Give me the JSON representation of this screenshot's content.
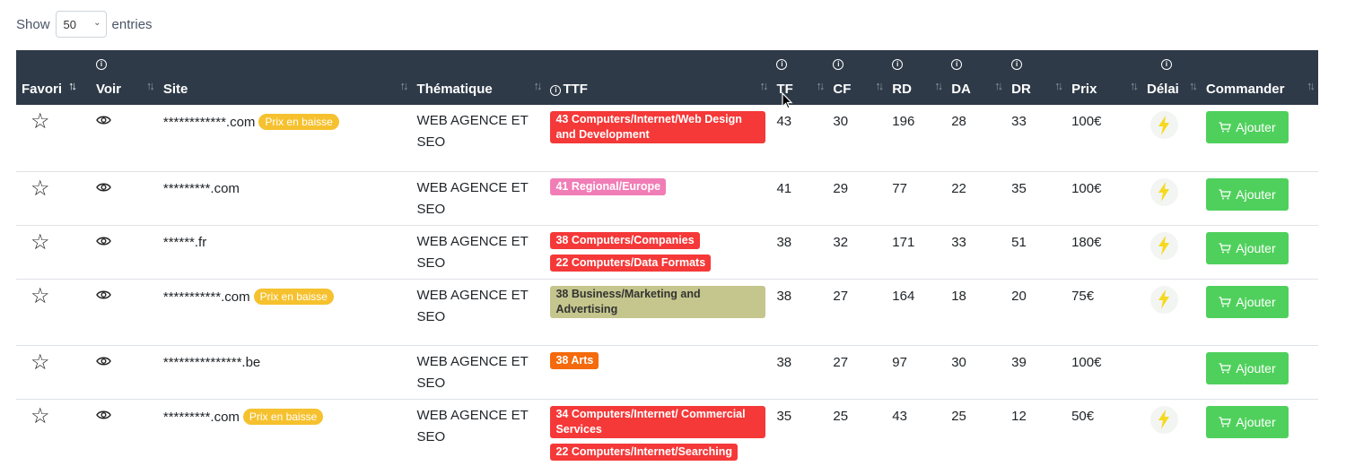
{
  "length_control": {
    "show_label": "Show",
    "selected": "50",
    "entries_label": "entries"
  },
  "columns": [
    {
      "key": "favori",
      "label": "Favori"
    },
    {
      "key": "voir",
      "label": "Voir"
    },
    {
      "key": "site",
      "label": "Site"
    },
    {
      "key": "thematique",
      "label": "Thématique"
    },
    {
      "key": "ttf",
      "label": "TTF"
    },
    {
      "key": "tf",
      "label": "TF"
    },
    {
      "key": "cf",
      "label": "CF"
    },
    {
      "key": "rd",
      "label": "RD"
    },
    {
      "key": "da",
      "label": "DA"
    },
    {
      "key": "dr",
      "label": "DR"
    },
    {
      "key": "prix",
      "label": "Prix"
    },
    {
      "key": "delai",
      "label": "Délai"
    },
    {
      "key": "commander",
      "label": "Commander"
    }
  ],
  "rows": [
    {
      "site": "************.com",
      "price_badge": "Prix en baisse",
      "theme_line1": "WEB AGENCE ET",
      "theme_line2": "SEO",
      "ttf": [
        {
          "text": "43 Computers/Internet/Web Design and Development",
          "color": "red",
          "block": true
        }
      ],
      "tf": "43",
      "cf": "30",
      "rd": "196",
      "da": "28",
      "dr": "33",
      "prix": "100€",
      "fast": true,
      "button": "Ajouter"
    },
    {
      "site": "*********.com",
      "price_badge": "",
      "theme_line1": "WEB AGENCE ET",
      "theme_line2": "SEO",
      "ttf": [
        {
          "text": "41 Regional/Europe",
          "color": "pink",
          "block": false
        }
      ],
      "tf": "41",
      "cf": "29",
      "rd": "77",
      "da": "22",
      "dr": "35",
      "prix": "100€",
      "fast": true,
      "button": "Ajouter"
    },
    {
      "site": "******.fr",
      "price_badge": "",
      "theme_line1": "WEB AGENCE ET",
      "theme_line2": "SEO",
      "ttf": [
        {
          "text": "38 Computers/Companies",
          "color": "red",
          "block": false
        },
        {
          "text": "22 Computers/Data Formats",
          "color": "red",
          "block": false
        }
      ],
      "tf": "38",
      "cf": "32",
      "rd": "171",
      "da": "33",
      "dr": "51",
      "prix": "180€",
      "fast": true,
      "button": "Ajouter"
    },
    {
      "site": "***********.com",
      "price_badge": "Prix en baisse",
      "theme_line1": "WEB AGENCE ET",
      "theme_line2": "SEO",
      "ttf": [
        {
          "text": "38 Business/Marketing and Advertising",
          "color": "olive",
          "block": true
        }
      ],
      "tf": "38",
      "cf": "27",
      "rd": "164",
      "da": "18",
      "dr": "20",
      "prix": "75€",
      "fast": true,
      "button": "Ajouter"
    },
    {
      "site": "***************.be",
      "price_badge": "",
      "theme_line1": "WEB AGENCE ET",
      "theme_line2": "SEO",
      "ttf": [
        {
          "text": "38 Arts",
          "color": "orange",
          "block": false
        }
      ],
      "tf": "38",
      "cf": "27",
      "rd": "97",
      "da": "30",
      "dr": "39",
      "prix": "100€",
      "fast": false,
      "button": "Ajouter"
    },
    {
      "site": "*********.com",
      "price_badge": "Prix en baisse",
      "theme_line1": "WEB AGENCE ET",
      "theme_line2": "SEO",
      "ttf": [
        {
          "text": "34 Computers/Internet/ Commercial Services",
          "color": "red",
          "block": true
        },
        {
          "text": "22 Computers/Internet/Searching",
          "color": "red",
          "block": false
        }
      ],
      "tf": "35",
      "cf": "25",
      "rd": "43",
      "da": "25",
      "dr": "12",
      "prix": "50€",
      "fast": true,
      "button": "Ajouter"
    }
  ],
  "icons": {
    "favorite": "star-outline-icon",
    "view": "eye-icon",
    "delay": "lightning-icon",
    "cart": "cart-icon",
    "info": "info-icon",
    "sort": "sort-arrows-icon"
  }
}
